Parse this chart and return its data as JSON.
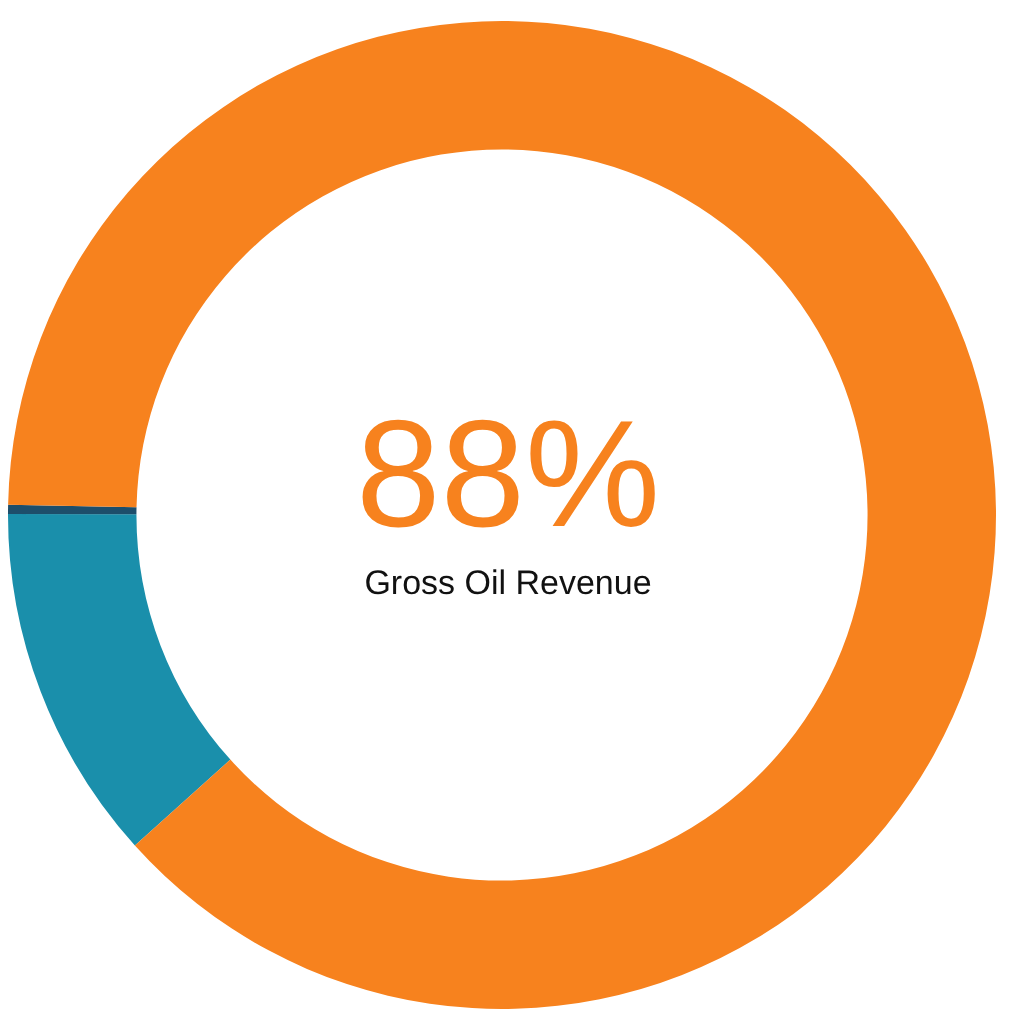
{
  "chart_data": {
    "type": "donut",
    "categories": [
      null,
      null,
      null
    ],
    "values": [
      11.7,
      0.3,
      88
    ],
    "colors": [
      "#1a8fab",
      "#1d4e6b",
      "#f7821e"
    ],
    "legend": false,
    "annotations": [
      "88%",
      "Gross Oil Revenue"
    ]
  }
}
